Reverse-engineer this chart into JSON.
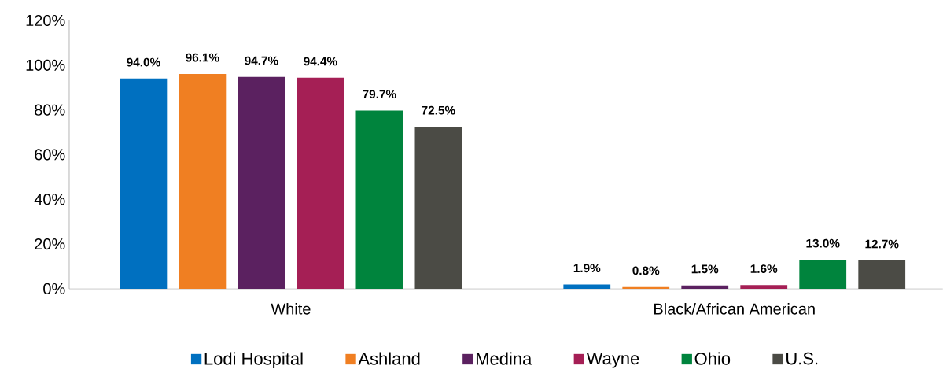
{
  "chart_data": {
    "type": "bar",
    "categories": [
      "White",
      "Black/African American"
    ],
    "series": [
      {
        "name": "Lodi Hospital",
        "color": "#0070c0",
        "values": [
          94.0,
          1.9
        ],
        "value_labels": [
          "94.0%",
          "1.9%"
        ]
      },
      {
        "name": "Ashland",
        "color": "#f07f22",
        "values": [
          96.1,
          0.8
        ],
        "value_labels": [
          "96.1%",
          "0.8%"
        ]
      },
      {
        "name": "Medina",
        "color": "#5b2160",
        "values": [
          94.7,
          1.5
        ],
        "value_labels": [
          "94.7%",
          "1.5%"
        ]
      },
      {
        "name": "Wayne",
        "color": "#a51f55",
        "values": [
          94.4,
          1.6
        ],
        "value_labels": [
          "94.4%",
          "1.6%"
        ]
      },
      {
        "name": "Ohio",
        "color": "#00843d",
        "values": [
          79.7,
          13.0
        ],
        "value_labels": [
          "79.7%",
          "13.0%"
        ]
      },
      {
        "name": "U.S.",
        "color": "#4b4b45",
        "values": [
          72.5,
          12.7
        ],
        "value_labels": [
          "72.5%",
          "12.7%"
        ]
      }
    ],
    "ylim": [
      0,
      120
    ],
    "yticks": [
      {
        "value": 0,
        "label": "0%"
      },
      {
        "value": 20,
        "label": "20%"
      },
      {
        "value": 40,
        "label": "40%"
      },
      {
        "value": 60,
        "label": "60%"
      },
      {
        "value": 80,
        "label": "80%"
      },
      {
        "value": 100,
        "label": "100%"
      },
      {
        "value": 120,
        "label": "120%"
      }
    ],
    "grid": false,
    "legend": "bottom"
  }
}
